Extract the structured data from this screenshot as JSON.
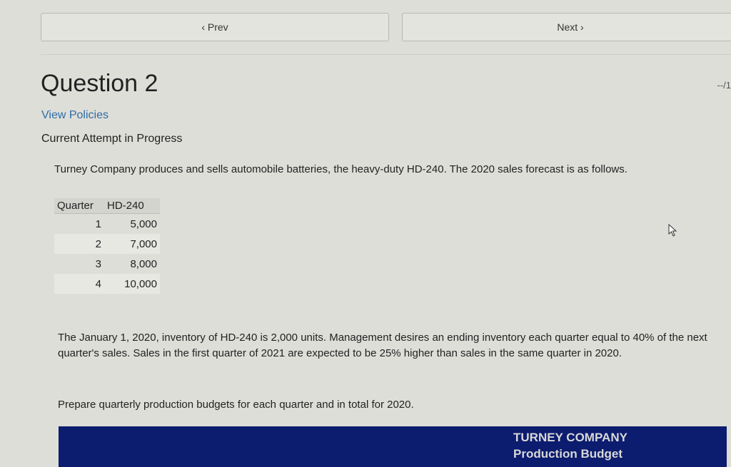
{
  "nav": {
    "prev_label": "‹ Prev",
    "next_label": "Next ›"
  },
  "question": {
    "title": "Question 2",
    "score": "--/1",
    "policies_link": "View Policies",
    "status": "Current Attempt in Progress"
  },
  "problem": {
    "intro": "Turney Company produces and sells automobile batteries, the heavy-duty HD-240. The 2020 sales forecast is as follows.",
    "table": {
      "headers": [
        "Quarter",
        "HD-240"
      ],
      "rows": [
        [
          "1",
          "5,000"
        ],
        [
          "2",
          "7,000"
        ],
        [
          "3",
          "8,000"
        ],
        [
          "4",
          "10,000"
        ]
      ]
    },
    "details": "The January 1, 2020, inventory of HD-240 is 2,000 units. Management desires an ending inventory each quarter equal to 40% of the next quarter's sales. Sales in the first quarter of 2021 are expected to be 25% higher than sales in the same quarter in 2020.",
    "instruction": "Prepare quarterly production budgets for each quarter and in total for 2020."
  },
  "budget": {
    "company": "TURNEY COMPANY",
    "title": "Production Budget"
  }
}
